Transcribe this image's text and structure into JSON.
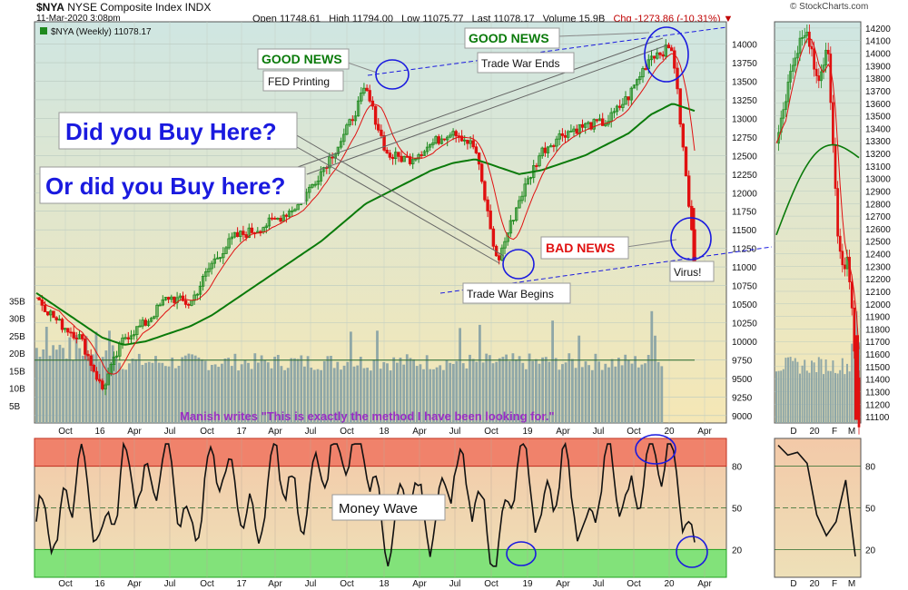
{
  "header": {
    "symbol": "$NYA",
    "name": "NYSE Composite Index",
    "exchange": "INDX",
    "date": "11-Mar-2020 3:08pm",
    "open_label": "Open",
    "open": "11748.61",
    "high_label": "High",
    "high": "11794.00",
    "low_label": "Low",
    "low": "11075.77",
    "last_label": "Last",
    "last": "11078.17",
    "volume_label": "Volume",
    "volume": "15.9B",
    "chg_label": "Chg",
    "chg": "-1273.86 (-10.31%)",
    "brand": "© StockCharts.com"
  },
  "colors": {
    "price_bg_top": "#cfe6e2",
    "price_bg_bottom": "#f5e7b5",
    "sma_long": "#0a7a0a",
    "sma_short": "#e01010",
    "candle_up": "#1f8a1f",
    "candle_down": "#e01010",
    "volume": "#8fa7a7",
    "overbought": "#f0826b",
    "oversold": "#82e27a",
    "callout": "#1a1adf",
    "good_news": "#0a7a0a",
    "bad_news": "#e01010",
    "circle": "#1a1adf"
  },
  "chart_data": [
    {
      "type": "line",
      "panel": "price (weekly candlesticks)",
      "legend": "$NYA (Weekly) 11078.17",
      "y_ticks": [
        9000,
        9250,
        9500,
        9750,
        10000,
        10250,
        10500,
        10750,
        11000,
        11250,
        11500,
        11750,
        12000,
        12250,
        12500,
        12750,
        13000,
        13250,
        13500,
        13750,
        14000
      ],
      "ylim": [
        8900,
        14300
      ],
      "volume_ticks": [
        "5B",
        "10B",
        "15B",
        "20B",
        "25B",
        "30B",
        "35B"
      ],
      "x_ticks": [
        "Oct",
        "16",
        "Apr",
        "Jul",
        "Oct",
        "17",
        "Apr",
        "Jul",
        "Oct",
        "18",
        "Apr",
        "Jul",
        "Oct",
        "19",
        "Apr",
        "Jul",
        "Oct",
        "20",
        "Apr"
      ],
      "x": [
        "2015-08",
        "2015-10",
        "2015-12",
        "2016-02",
        "2016-04",
        "2016-06",
        "2016-08",
        "2016-10",
        "2016-12",
        "2017-02",
        "2017-04",
        "2017-06",
        "2017-08",
        "2017-10",
        "2017-12",
        "2018-01",
        "2018-02",
        "2018-04",
        "2018-06",
        "2018-08",
        "2018-10",
        "2018-12",
        "2019-01",
        "2019-03",
        "2019-05",
        "2019-07",
        "2019-09",
        "2019-11",
        "2020-01",
        "2020-02",
        "2020-03"
      ],
      "series": [
        {
          "name": "price",
          "values": [
            10600,
            10250,
            10050,
            9350,
            10050,
            10250,
            10600,
            10500,
            11050,
            11400,
            11500,
            11650,
            11850,
            12300,
            12750,
            13400,
            12500,
            12450,
            12650,
            12850,
            12600,
            11050,
            11900,
            12550,
            12800,
            12900,
            12950,
            13300,
            13850,
            13950,
            11078
          ]
        },
        {
          "name": "sma_long",
          "values": [
            10650,
            10450,
            10250,
            10050,
            9950,
            10000,
            10100,
            10200,
            10350,
            10550,
            10750,
            10950,
            11150,
            11350,
            11600,
            11850,
            12000,
            12150,
            12300,
            12400,
            12450,
            12350,
            12250,
            12300,
            12400,
            12500,
            12650,
            12800,
            13050,
            13200,
            13100
          ]
        }
      ],
      "annotations": [
        {
          "text": "Did you Buy Here?"
        },
        {
          "text": "Or did you Buy here?"
        },
        {
          "text": "GOOD NEWS",
          "note": "FED Printing"
        },
        {
          "text": "GOOD NEWS",
          "note": "Trade War Ends"
        },
        {
          "text": "BAD NEWS",
          "note": "Virus!"
        },
        {
          "text": "Trade War Begins"
        },
        {
          "text": "Manish writes \"This is exactly the method I have been looking for.\""
        }
      ]
    },
    {
      "type": "line",
      "panel": "Money Wave oscillator",
      "label": "Money Wave",
      "y_ticks": [
        20,
        50,
        80
      ],
      "ylim": [
        0,
        100
      ],
      "x_ticks": [
        "Oct",
        "16",
        "Apr",
        "Jul",
        "Oct",
        "17",
        "Apr",
        "Jul",
        "Oct",
        "18",
        "Apr",
        "Jul",
        "Oct",
        "19",
        "Apr",
        "Jul",
        "Oct",
        "20",
        "Apr"
      ],
      "x": [
        "2015-08",
        "2015-10",
        "2015-12",
        "2016-02",
        "2016-04",
        "2016-06",
        "2016-08",
        "2016-10",
        "2016-12",
        "2017-02",
        "2017-04",
        "2017-06",
        "2017-08",
        "2017-10",
        "2017-12",
        "2018-01",
        "2018-02",
        "2018-04",
        "2018-06",
        "2018-08",
        "2018-10",
        "2018-12",
        "2019-01",
        "2019-03",
        "2019-05",
        "2019-07",
        "2019-09",
        "2019-11",
        "2020-01",
        "2020-02",
        "2020-03"
      ],
      "values": [
        45,
        30,
        85,
        20,
        80,
        60,
        90,
        25,
        85,
        70,
        30,
        88,
        40,
        85,
        90,
        92,
        20,
        70,
        30,
        80,
        60,
        10,
        90,
        40,
        85,
        25,
        88,
        50,
        88,
        85,
        15
      ]
    },
    {
      "type": "line",
      "panel": "inset price (daily)",
      "y_ticks": [
        11100,
        11200,
        11300,
        11400,
        11500,
        11600,
        11700,
        11800,
        11900,
        12000,
        12100,
        12200,
        12300,
        12400,
        12500,
        12600,
        12700,
        12800,
        12900,
        13000,
        13100,
        13200,
        13300,
        13400,
        13500,
        13600,
        13700,
        13800,
        13900,
        14000,
        14100,
        14200
      ],
      "ylim": [
        11050,
        14250
      ],
      "x_ticks": [
        "D",
        "20",
        "F",
        "M"
      ],
      "x": [
        "2019-12-01",
        "2019-12-15",
        "2020-01-01",
        "2020-01-15",
        "2020-02-01",
        "2020-02-15",
        "2020-02-25",
        "2020-03-05",
        "2020-03-11"
      ],
      "values": [
        13300,
        13700,
        14050,
        14150,
        13750,
        14100,
        12400,
        12300,
        11078
      ]
    },
    {
      "type": "line",
      "panel": "inset Money Wave (daily)",
      "y_ticks": [
        20,
        50,
        80
      ],
      "ylim": [
        0,
        100
      ],
      "x_ticks": [
        "D",
        "20",
        "F",
        "M"
      ],
      "x": [
        "2019-12-01",
        "2019-12-15",
        "2020-01-01",
        "2020-01-15",
        "2020-02-01",
        "2020-02-15",
        "2020-02-25",
        "2020-03-05",
        "2020-03-11"
      ],
      "values": [
        95,
        88,
        90,
        82,
        45,
        30,
        40,
        70,
        15
      ]
    }
  ]
}
